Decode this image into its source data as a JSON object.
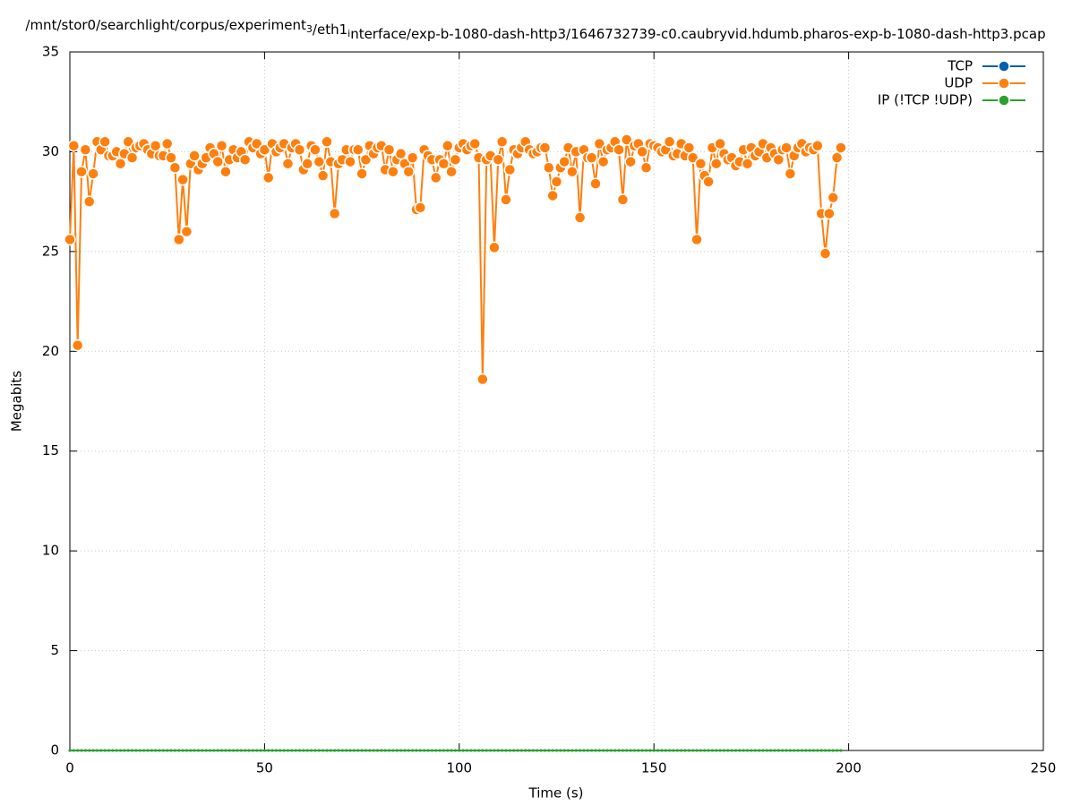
{
  "chart_data": {
    "type": "line",
    "title": "/mnt/stor0/searchlight/corpus/experiment_3/eth1_interface/exp-b-1080-dash-http3/1646732739-c0.caubryvid.hdumb.pharos-exp-b-1080-dash-http3.pcap",
    "x_label": "Time (s)",
    "y_label": "Megabits",
    "xlim": [
      0,
      250
    ],
    "xticks": [
      0,
      50,
      100,
      150,
      200,
      250
    ],
    "ylim": [
      0,
      35
    ],
    "yticks": [
      0,
      5,
      10,
      15,
      20,
      25,
      30,
      35
    ],
    "grid": true,
    "legend": "top-right",
    "x": [
      0,
      1,
      2,
      3,
      4,
      5,
      6,
      7,
      8,
      9,
      10,
      11,
      12,
      13,
      14,
      15,
      16,
      17,
      18,
      19,
      20,
      21,
      22,
      23,
      24,
      25,
      26,
      27,
      28,
      29,
      30,
      31,
      32,
      33,
      34,
      35,
      36,
      37,
      38,
      39,
      40,
      41,
      42,
      43,
      44,
      45,
      46,
      47,
      48,
      49,
      50,
      51,
      52,
      53,
      54,
      55,
      56,
      57,
      58,
      59,
      60,
      61,
      62,
      63,
      64,
      65,
      66,
      67,
      68,
      69,
      70,
      71,
      72,
      73,
      74,
      75,
      76,
      77,
      78,
      79,
      80,
      81,
      82,
      83,
      84,
      85,
      86,
      87,
      88,
      89,
      90,
      91,
      92,
      93,
      94,
      95,
      96,
      97,
      98,
      99,
      100,
      101,
      102,
      103,
      104,
      105,
      106,
      107,
      108,
      109,
      110,
      111,
      112,
      113,
      114,
      115,
      116,
      117,
      118,
      119,
      120,
      121,
      122,
      123,
      124,
      125,
      126,
      127,
      128,
      129,
      130,
      131,
      132,
      133,
      134,
      135,
      136,
      137,
      138,
      139,
      140,
      141,
      142,
      143,
      144,
      145,
      146,
      147,
      148,
      149,
      150,
      151,
      152,
      153,
      154,
      155,
      156,
      157,
      158,
      159,
      160,
      161,
      162,
      163,
      164,
      165,
      166,
      167,
      168,
      169,
      170,
      171,
      172,
      173,
      174,
      175,
      176,
      177,
      178,
      179,
      180,
      181,
      182,
      183,
      184,
      185,
      186,
      187,
      188,
      189,
      190,
      191,
      192,
      193,
      194,
      195,
      196,
      197,
      198
    ],
    "series": [
      {
        "name": "TCP",
        "color": "#0060ad",
        "values": [
          0,
          0,
          0,
          0,
          0,
          0,
          0,
          0,
          0,
          0,
          0,
          0,
          0,
          0,
          0,
          0,
          0,
          0,
          0,
          0,
          0,
          0,
          0,
          0,
          0,
          0,
          0,
          0,
          0,
          0,
          0,
          0,
          0,
          0,
          0,
          0,
          0,
          0,
          0,
          0,
          0,
          0,
          0,
          0,
          0,
          0,
          0,
          0,
          0,
          0,
          0,
          0,
          0,
          0,
          0,
          0,
          0,
          0,
          0,
          0,
          0,
          0,
          0,
          0,
          0,
          0,
          0,
          0,
          0,
          0,
          0,
          0,
          0,
          0,
          0,
          0,
          0,
          0,
          0,
          0,
          0,
          0,
          0,
          0,
          0,
          0,
          0,
          0,
          0,
          0,
          0,
          0,
          0,
          0,
          0,
          0,
          0,
          0,
          0,
          0,
          0,
          0,
          0,
          0,
          0,
          0,
          0,
          0,
          0,
          0,
          0,
          0,
          0,
          0,
          0,
          0,
          0,
          0,
          0,
          0,
          0,
          0,
          0,
          0,
          0,
          0,
          0,
          0,
          0,
          0,
          0,
          0,
          0,
          0,
          0,
          0,
          0,
          0,
          0,
          0,
          0,
          0,
          0,
          0,
          0,
          0,
          0,
          0,
          0,
          0,
          0,
          0,
          0,
          0,
          0,
          0,
          0,
          0,
          0,
          0,
          0,
          0,
          0,
          0,
          0,
          0,
          0,
          0,
          0,
          0,
          0,
          0,
          0,
          0,
          0,
          0,
          0,
          0,
          0,
          0,
          0,
          0,
          0,
          0,
          0,
          0,
          0,
          0,
          0,
          0,
          0,
          0,
          0,
          0,
          0,
          0,
          0,
          0,
          0
        ]
      },
      {
        "name": "UDP",
        "color": "#ff7f0e",
        "values": [
          25.6,
          30.3,
          20.3,
          29,
          30.1,
          27.5,
          28.9,
          30.5,
          30.1,
          30.5,
          29.8,
          29.8,
          30,
          29.4,
          29.9,
          30.5,
          29.7,
          30.2,
          30.3,
          30.4,
          30.1,
          29.9,
          30.3,
          29.8,
          29.8,
          30.4,
          29.7,
          29.2,
          25.6,
          28.6,
          26,
          29.4,
          29.8,
          29.1,
          29.4,
          29.7,
          30.2,
          29.9,
          29.5,
          30.3,
          29,
          29.6,
          30.1,
          29.7,
          30,
          29.6,
          30.5,
          30.2,
          30.4,
          29.9,
          30.1,
          28.7,
          30.4,
          30,
          30.2,
          30.4,
          29.4,
          30.2,
          30.4,
          30.1,
          29.1,
          29.4,
          30.3,
          30.1,
          29.5,
          28.8,
          30.5,
          29.5,
          26.9,
          29.4,
          29.6,
          30.1,
          29.5,
          30.1,
          30.1,
          28.9,
          29.6,
          30.3,
          29.9,
          30.2,
          30.3,
          29.1,
          30.1,
          29,
          29.6,
          29.9,
          29.4,
          29,
          29.7,
          27.1,
          27.2,
          30.1,
          29.8,
          29.6,
          28.7,
          29.6,
          29.4,
          30.3,
          29,
          29.6,
          30.2,
          30.4,
          30.1,
          30.3,
          30.4,
          29.7,
          18.6,
          29.6,
          29.8,
          25.2,
          29.6,
          30.5,
          27.6,
          29.1,
          30.1,
          29.9,
          30.2,
          30.5,
          30.1,
          29.9,
          30,
          30.2,
          30.2,
          29.2,
          27.8,
          28.5,
          29.2,
          29.5,
          30.2,
          29,
          30,
          26.7,
          30.1,
          29.7,
          29.7,
          28.4,
          30.4,
          29.5,
          30.1,
          30.2,
          30.5,
          30.1,
          27.6,
          30.6,
          29.5,
          30.3,
          30.4,
          30,
          29.2,
          30.4,
          30.3,
          30.2,
          30,
          30.1,
          30.5,
          29.8,
          29.9,
          30.4,
          29.8,
          30.2,
          29.7,
          25.6,
          29.4,
          28.8,
          28.5,
          30.2,
          29.4,
          30.4,
          29.9,
          29.6,
          29.7,
          29.3,
          29.5,
          30.1,
          29.4,
          30.2,
          29.8,
          30,
          30.4,
          29.7,
          30.2,
          29.9,
          29.6,
          30.1,
          30.2,
          28.9,
          29.8,
          30.2,
          30.4,
          30,
          30.2,
          30.1,
          30.3,
          26.9,
          24.9,
          26.9,
          27.7,
          29.7,
          30.2
        ]
      },
      {
        "name": "IP (!TCP  !UDP)",
        "color": "#2ca02c",
        "values": [
          0,
          0,
          0,
          0,
          0,
          0,
          0,
          0,
          0,
          0,
          0,
          0,
          0,
          0,
          0,
          0,
          0,
          0,
          0,
          0,
          0,
          0,
          0,
          0,
          0,
          0,
          0,
          0,
          0,
          0,
          0,
          0,
          0,
          0,
          0,
          0,
          0,
          0,
          0,
          0,
          0,
          0,
          0,
          0,
          0,
          0,
          0,
          0,
          0,
          0,
          0,
          0,
          0,
          0,
          0,
          0,
          0,
          0,
          0,
          0,
          0,
          0,
          0,
          0,
          0,
          0,
          0,
          0,
          0,
          0,
          0,
          0,
          0,
          0,
          0,
          0,
          0,
          0,
          0,
          0,
          0,
          0,
          0,
          0,
          0,
          0,
          0,
          0,
          0,
          0,
          0,
          0,
          0,
          0,
          0,
          0,
          0,
          0,
          0,
          0,
          0,
          0,
          0,
          0,
          0,
          0,
          0,
          0,
          0,
          0,
          0,
          0,
          0,
          0,
          0,
          0,
          0,
          0,
          0,
          0,
          0,
          0,
          0,
          0,
          0,
          0,
          0,
          0,
          0,
          0,
          0,
          0,
          0,
          0,
          0,
          0,
          0,
          0,
          0,
          0,
          0,
          0,
          0,
          0,
          0,
          0,
          0,
          0,
          0,
          0,
          0,
          0,
          0,
          0,
          0,
          0,
          0,
          0,
          0,
          0,
          0,
          0,
          0,
          0,
          0,
          0,
          0,
          0,
          0,
          0,
          0,
          0,
          0,
          0,
          0,
          0,
          0,
          0,
          0,
          0,
          0,
          0,
          0,
          0,
          0,
          0,
          0,
          0,
          0,
          0,
          0,
          0,
          0,
          0,
          0,
          0,
          0,
          0,
          0
        ]
      }
    ]
  }
}
